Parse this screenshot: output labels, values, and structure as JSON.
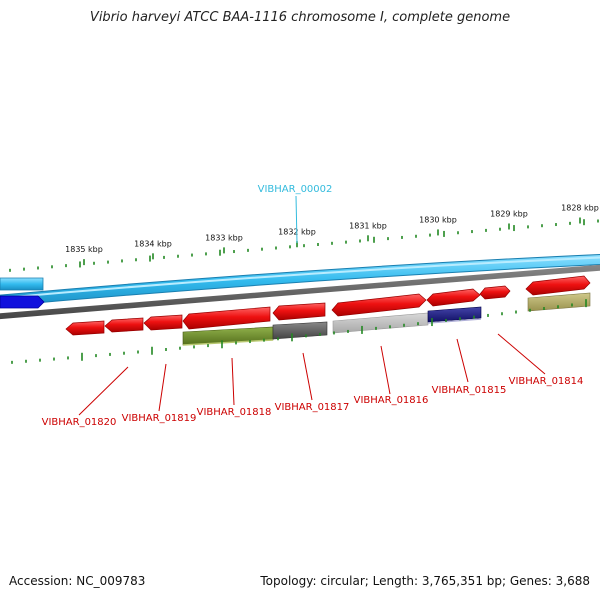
{
  "title": "Vibrio harveyi ATCC BAA-1116 chromosome I, complete genome",
  "footer": {
    "accession": "Accession: NC_009783",
    "summary": "Topology: circular; Length: 3,765,351 bp; Genes: 3,688"
  },
  "ruler_labels": [
    "1835 kbp",
    "1834 kbp",
    "1833 kbp",
    "1832 kbp",
    "1831 kbp",
    "1830 kbp",
    "1829 kbp",
    "1828 kbp"
  ],
  "top_label": {
    "text": "VIBHAR_00002",
    "color": "#33bbdd"
  },
  "gene_labels": [
    "VIBHAR_01820",
    "VIBHAR_01819",
    "VIBHAR_01818",
    "VIBHAR_01817",
    "VIBHAR_01816",
    "VIBHAR_01815",
    "VIBHAR_01814"
  ],
  "colors": {
    "gene_red": "#ee1111",
    "label_red": "#cc0000",
    "tick_green": "#228822",
    "track_blue": "#33bbee",
    "strand_blue": "#1111dd",
    "grey_band": "#777777",
    "olive": "#6b8e23",
    "dark_grey": "#555555",
    "light_grey": "#bbbbbb",
    "navy": "#222288",
    "khaki": "#b5ad6a"
  }
}
